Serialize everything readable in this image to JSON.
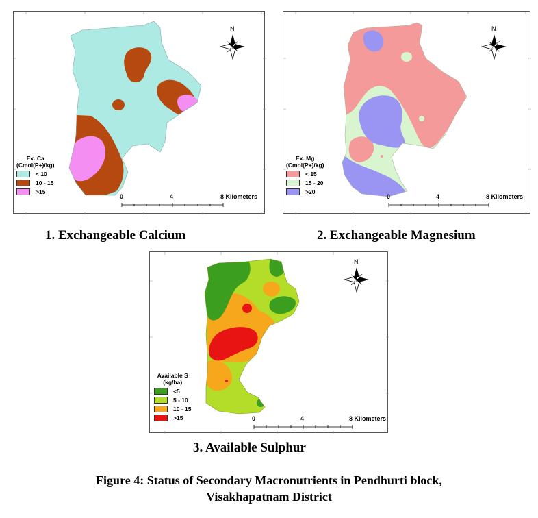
{
  "maps": [
    {
      "caption": "1. Exchangeable Calcium",
      "legend_title": "Ex. Ca",
      "legend_unit": "(Cmol(P+)/kg)",
      "classes": [
        {
          "label": "< 10",
          "color": "#aeeae4"
        },
        {
          "label": "10 - 15",
          "color": "#b5490f"
        },
        {
          "label": ">15",
          "color": "#f58ef2"
        }
      ],
      "north_label": "N",
      "scale": {
        "ticks": [
          "0",
          "4",
          "8 Kilometers"
        ]
      }
    },
    {
      "caption": "2. Exchangeable Magnesium",
      "legend_title": "Ex. Mg",
      "legend_unit": "(Cmol(P+)/kg)",
      "classes": [
        {
          "label": "< 15",
          "color": "#f49a9a"
        },
        {
          "label": "15 - 20",
          "color": "#d8f5d0"
        },
        {
          "label": ">20",
          "color": "#9a95f2"
        }
      ],
      "north_label": "N",
      "scale": {
        "ticks": [
          "0",
          "4",
          "8 Kilometers"
        ]
      }
    },
    {
      "caption": "3. Available Sulphur",
      "legend_title": "Available S",
      "legend_unit": "(kg/ha)",
      "classes": [
        {
          "label": "<5",
          "color": "#3c9e1e"
        },
        {
          "label": "5 - 10",
          "color": "#b4dd2a"
        },
        {
          "label": "10 - 15",
          "color": "#f6a71c"
        },
        {
          "label": ">15",
          "color": "#e81414"
        }
      ],
      "north_label": "N",
      "scale": {
        "ticks": [
          "0",
          "4",
          "8 Kilometers"
        ]
      }
    }
  ],
  "figure_caption_line1": "Figure 4: Status of Secondary Macronutrients in Pendhurti block,",
  "figure_caption_line2": "Visakhapatnam District"
}
